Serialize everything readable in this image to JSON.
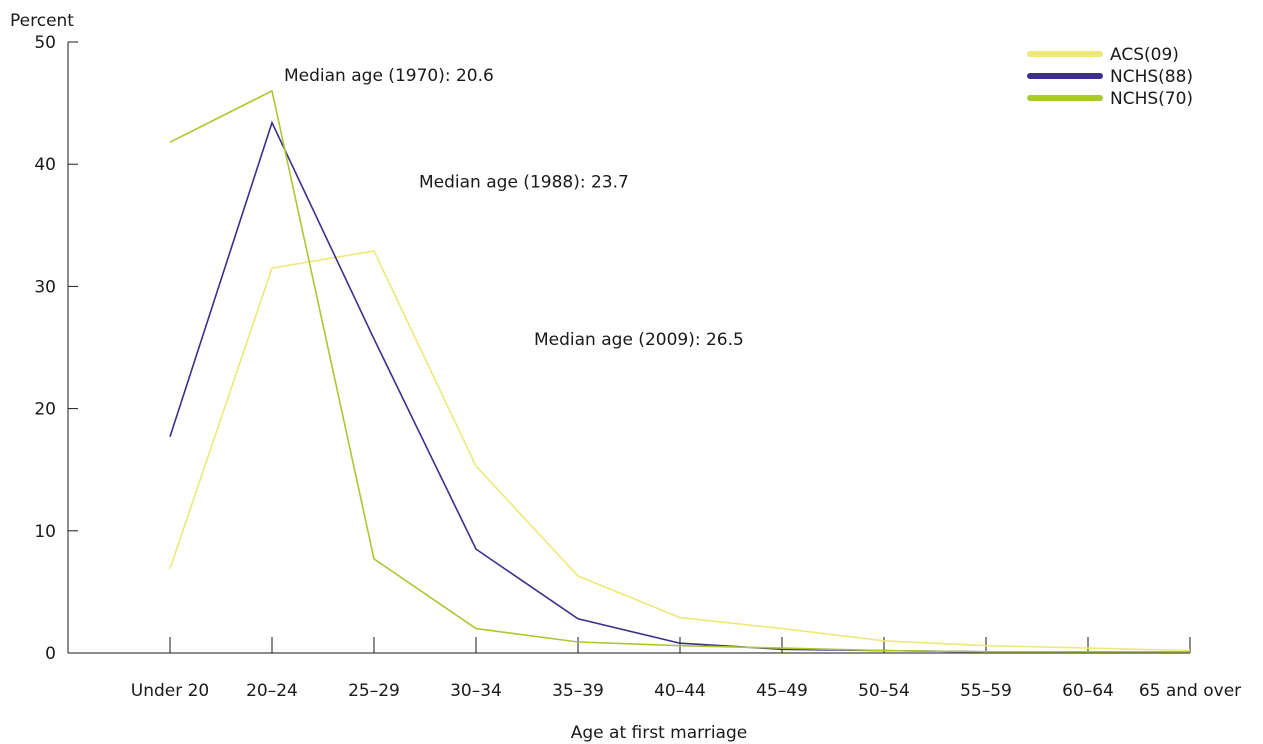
{
  "chart_data": {
    "type": "line",
    "title": "",
    "xlabel": "Age at first marriage",
    "ylabel": "Percent",
    "ylim": [
      0,
      50
    ],
    "yticks": [
      0,
      10,
      20,
      30,
      40,
      50
    ],
    "grid": false,
    "legend_position": "top-right",
    "categories": [
      "Under 20",
      "20–24",
      "25–29",
      "30–34",
      "35–39",
      "40–44",
      "45–49",
      "50–54",
      "55–59",
      "60–64",
      "65 and over"
    ],
    "series": [
      {
        "name": "ACS(09)",
        "color": "#ede87a",
        "values": [
          6.9,
          31.5,
          32.9,
          15.3,
          6.3,
          2.9,
          2.0,
          1.0,
          0.6,
          0.4,
          0.2
        ]
      },
      {
        "name": "NCHS(88)",
        "color": "#3c2f8c",
        "values": [
          17.7,
          43.4,
          25.7,
          8.5,
          2.8,
          0.8,
          0.3,
          0.2,
          0.1,
          0.1,
          0.1
        ]
      },
      {
        "name": "NCHS(70)",
        "color": "#a9c832",
        "values": [
          41.8,
          46.0,
          7.7,
          2.0,
          0.9,
          0.6,
          0.4,
          0.2,
          0.1,
          0.1,
          0.1
        ]
      }
    ],
    "annotations": [
      {
        "text": "Median age (1970): 20.6",
        "x": "20–24",
        "y": 47.3
      },
      {
        "text": "Median age (1988): 23.7",
        "x": "25–29",
        "y": 38.6
      },
      {
        "text": "Median age (2009): 26.5",
        "x": "30–34",
        "y": 25.7
      }
    ]
  }
}
